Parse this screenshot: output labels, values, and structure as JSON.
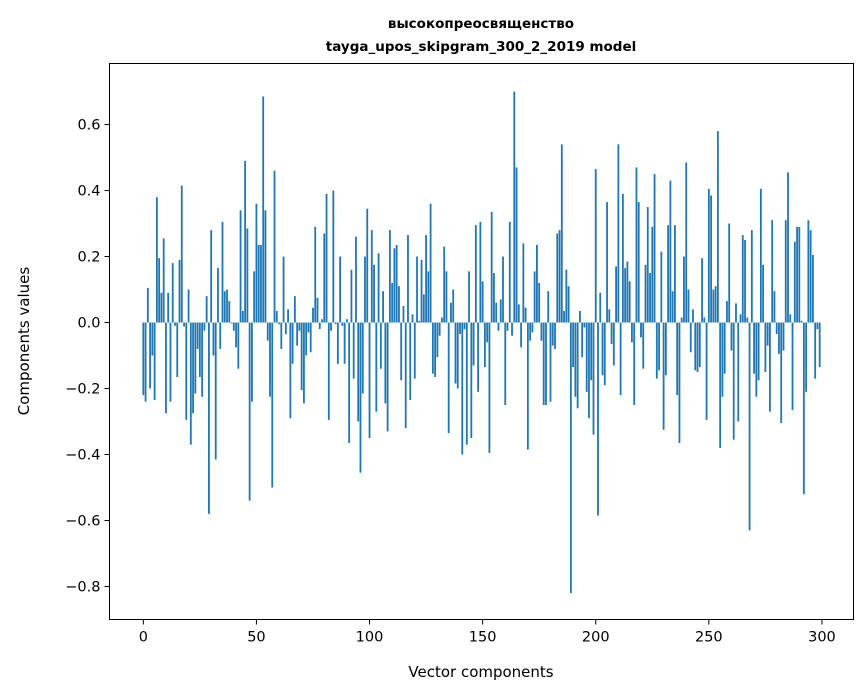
{
  "chart_data": {
    "type": "bar",
    "title_lines": [
      "высокопреосвященство",
      "tayga_upos_skipgram_300_2_2019 model"
    ],
    "xlabel": "Vector components",
    "ylabel": "Components values",
    "xlim": [
      -14.95,
      313.95
    ],
    "ylim": [
      -0.9,
      0.785
    ],
    "xticks": [
      0,
      50,
      100,
      150,
      200,
      250,
      300
    ],
    "yticks": [
      -0.8,
      -0.6,
      -0.4,
      -0.2,
      0.0,
      0.2,
      0.4,
      0.6
    ],
    "xtick_labels": [
      "0",
      "50",
      "100",
      "150",
      "200",
      "250",
      "300"
    ],
    "ytick_labels": [
      "−0.8",
      "−0.6",
      "−0.4",
      "−0.2",
      "0.0",
      "0.2",
      "0.4",
      "0.6"
    ],
    "bar_color": "#1f77b4",
    "bar_width": 0.8,
    "grid": false,
    "values": [
      -0.22,
      -0.24,
      0.105,
      -0.2,
      -0.1,
      -0.235,
      0.38,
      0.195,
      0.09,
      0.255,
      -0.275,
      0.09,
      -0.24,
      0.18,
      -0.01,
      -0.165,
      0.19,
      0.415,
      -0.012,
      -0.295,
      0.1,
      -0.37,
      -0.275,
      -0.215,
      -0.08,
      -0.165,
      -0.225,
      -0.025,
      0.08,
      -0.58,
      0.28,
      -0.1,
      -0.415,
      0.165,
      -0.08,
      0.305,
      0.095,
      0.1,
      0.065,
      -0.003,
      -0.025,
      -0.075,
      -0.14,
      0.34,
      0.035,
      0.49,
      0.285,
      -0.54,
      -0.24,
      0.155,
      0.36,
      0.235,
      0.235,
      0.685,
      0.34,
      -0.055,
      -0.225,
      -0.5,
      0.46,
      0.035,
      -0.005,
      -0.08,
      0.2,
      -0.035,
      0.04,
      -0.29,
      -0.125,
      0.08,
      -0.07,
      -0.025,
      -0.205,
      -0.245,
      -0.1,
      -0.03,
      -0.09,
      0.045,
      0.29,
      0.075,
      -0.02,
      0.01,
      0.27,
      0.39,
      -0.295,
      -0.025,
      0.4,
      -0.005,
      -0.125,
      0.2,
      -0.01,
      -0.125,
      0.01,
      -0.365,
      0.16,
      -0.17,
      0.26,
      -0.3,
      -0.455,
      -0.215,
      0.2,
      0.345,
      -0.35,
      0.28,
      0.175,
      -0.27,
      0.21,
      -0.14,
      0.095,
      -0.245,
      -0.33,
      0.28,
      0.12,
      0.225,
      0.235,
      0.11,
      -0.175,
      0.05,
      -0.32,
      0.265,
      -0.235,
      0.025,
      -0.17,
      0.2,
      0.005,
      0.19,
      0.085,
      0.265,
      0.155,
      0.36,
      -0.155,
      -0.165,
      -0.105,
      -0.04,
      0.015,
      0.23,
      0.155,
      -0.335,
      0.06,
      0.1,
      -0.185,
      -0.2,
      -0.035,
      -0.4,
      -0.02,
      -0.37,
      0.155,
      -0.35,
      -0.13,
      0.295,
      -0.21,
      0.305,
      0.125,
      -0.135,
      -0.06,
      -0.395,
      0.335,
      0.15,
      0.06,
      -0.025,
      0.07,
      0.2,
      -0.25,
      -0.025,
      0.305,
      -0.04,
      0.7,
      0.47,
      0.055,
      -0.075,
      0.24,
      0.045,
      -0.385,
      -0.055,
      -0.03,
      0.155,
      0.235,
      0.12,
      -0.055,
      -0.25,
      -0.25,
      0.095,
      -0.24,
      -0.07,
      -0.08,
      0.27,
      0.28,
      0.54,
      0.035,
      0.16,
      0.11,
      -0.82,
      -0.135,
      -0.225,
      -0.26,
      0.035,
      -0.105,
      -0.015,
      -0.21,
      -0.29,
      -0.175,
      -0.34,
      0.465,
      -0.585,
      0.09,
      -0.16,
      -0.19,
      0.365,
      0.04,
      -0.065,
      -0.13,
      0.17,
      0.54,
      -0.22,
      0.39,
      0.165,
      0.185,
      0.125,
      -0.06,
      -0.25,
      0.47,
      0.365,
      -0.045,
      -0.14,
      0.175,
      0.35,
      0.15,
      0.29,
      0.45,
      -0.17,
      -0.145,
      0.215,
      -0.325,
      -0.16,
      0.295,
      0.43,
      0.095,
      0.295,
      -0.22,
      -0.365,
      0.015,
      0.2,
      0.485,
      0.1,
      -0.09,
      0.04,
      -0.145,
      -0.15,
      -0.135,
      0.195,
      0.015,
      -0.295,
      0.405,
      0.385,
      0.1,
      0.11,
      0.58,
      -0.38,
      -0.225,
      -0.155,
      0.065,
      0.3,
      -0.085,
      -0.355,
      0.058,
      -0.3,
      0.025,
      0.265,
      0.25,
      0.015,
      -0.63,
      0.28,
      -0.155,
      -0.225,
      -0.175,
      0.405,
      0.175,
      -0.15,
      -0.07,
      -0.27,
      0.31,
      0.095,
      -0.035,
      -0.095,
      -0.305,
      -0.085,
      0.31,
      0.455,
      0.025,
      -0.265,
      0.245,
      0.29,
      0.29,
      0.005,
      -0.52,
      -0.21,
      0.31,
      0.28,
      0.205,
      -0.17,
      -0.02,
      -0.135
    ]
  }
}
